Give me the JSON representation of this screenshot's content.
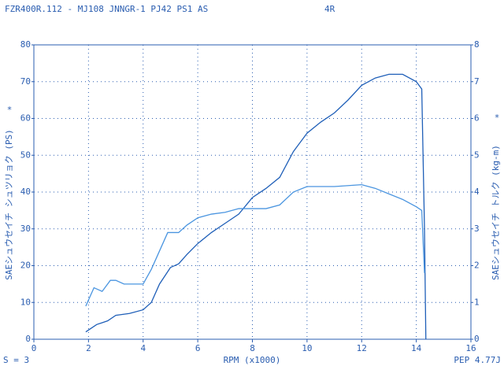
{
  "chart_data": {
    "type": "line",
    "title": "FZR400R.112 - MJ108 JNNGR-1 PJ42 PS1 AS",
    "subtitle": "4R",
    "xlabel": "RPM (x1000)",
    "ylabel": "SAEシュウセイチ シュツリョク (PS)",
    "y2label": "SAEシュウセイチ トルク (kg-m)",
    "annotations": [
      "*",
      "*",
      "S = 3",
      "PEP 4.77J"
    ],
    "xlim": [
      0,
      16
    ],
    "xticks": [
      0,
      2,
      4,
      6,
      8,
      10,
      12,
      14,
      16
    ],
    "ylim": [
      0,
      80
    ],
    "yticks": [
      0,
      10,
      20,
      30,
      40,
      50,
      60,
      70,
      80
    ],
    "y2lim": [
      0,
      8
    ],
    "y2ticks": [
      0,
      1,
      2,
      3,
      4,
      5,
      6,
      7,
      8
    ],
    "grid": true,
    "series": [
      {
        "name": "PS",
        "color": "#1f5fb8",
        "x": [
          1.9,
          2,
          2.3,
          2.7,
          3,
          3.5,
          4,
          4.3,
          4.6,
          5,
          5.3,
          5.6,
          6,
          6.5,
          7,
          7.5,
          8,
          8.5,
          9,
          9.5,
          10,
          10.5,
          11,
          11.5,
          12,
          12.5,
          13,
          13.5,
          14,
          14.2,
          14.3,
          14.35
        ],
        "values": [
          2,
          2.5,
          4,
          5,
          6.5,
          7,
          8,
          10,
          15,
          19.5,
          20.5,
          23,
          26,
          29,
          31.5,
          34,
          38.5,
          41,
          44,
          51,
          56,
          59,
          61.5,
          65,
          69,
          71,
          72,
          72,
          70,
          68,
          30,
          0
        ]
      },
      {
        "name": "kg-m",
        "color": "#4a95e0",
        "axis": "y2",
        "x": [
          1.9,
          2.2,
          2.5,
          2.8,
          3,
          3.3,
          4,
          4.3,
          4.6,
          4.9,
          5.3,
          5.6,
          6,
          6.5,
          7,
          7.5,
          8,
          8.5,
          9,
          9.5,
          10,
          10.5,
          11,
          12,
          12.5,
          13,
          13.5,
          14,
          14.2,
          14.3
        ],
        "values": [
          0.9,
          1.4,
          1.3,
          1.6,
          1.6,
          1.5,
          1.5,
          1.9,
          2.4,
          2.9,
          2.9,
          3.1,
          3.3,
          3.4,
          3.45,
          3.55,
          3.55,
          3.55,
          3.65,
          4.0,
          4.15,
          4.15,
          4.15,
          4.2,
          4.1,
          3.95,
          3.8,
          3.6,
          3.5,
          1.8
        ]
      }
    ]
  }
}
